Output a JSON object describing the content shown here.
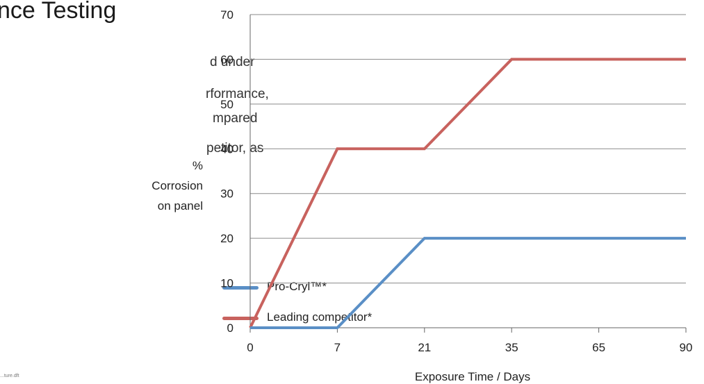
{
  "page": {
    "heading": "nce Testing",
    "body_lines": [
      "d under",
      "rformance,",
      "mpared",
      "petitor, as"
    ],
    "footnote": "...ture.dft"
  },
  "legend": {
    "items": [
      {
        "label": "Pro-Cryl™*",
        "color": "#5a8fc6"
      },
      {
        "label": "Leading competitor*",
        "color": "#c8625e"
      }
    ]
  },
  "chart_data": {
    "type": "line",
    "title": "",
    "xlabel": "Exposure Time / Days",
    "ylabel": [
      "%",
      "Corrosion",
      "on panel"
    ],
    "x_categories": [
      "0",
      "7",
      "21",
      "35",
      "65",
      "90"
    ],
    "ylim": [
      0,
      70
    ],
    "yticks": [
      0,
      10,
      20,
      30,
      40,
      50,
      60,
      70
    ],
    "grid": true,
    "legend_position": "left",
    "series": [
      {
        "name": "Pro-Cryl™*",
        "color": "#5a8fc6",
        "values": [
          0,
          0,
          20,
          20,
          20,
          20
        ]
      },
      {
        "name": "Leading competitor*",
        "color": "#c8625e",
        "values": [
          0,
          40,
          40,
          60,
          60,
          60
        ]
      }
    ]
  }
}
